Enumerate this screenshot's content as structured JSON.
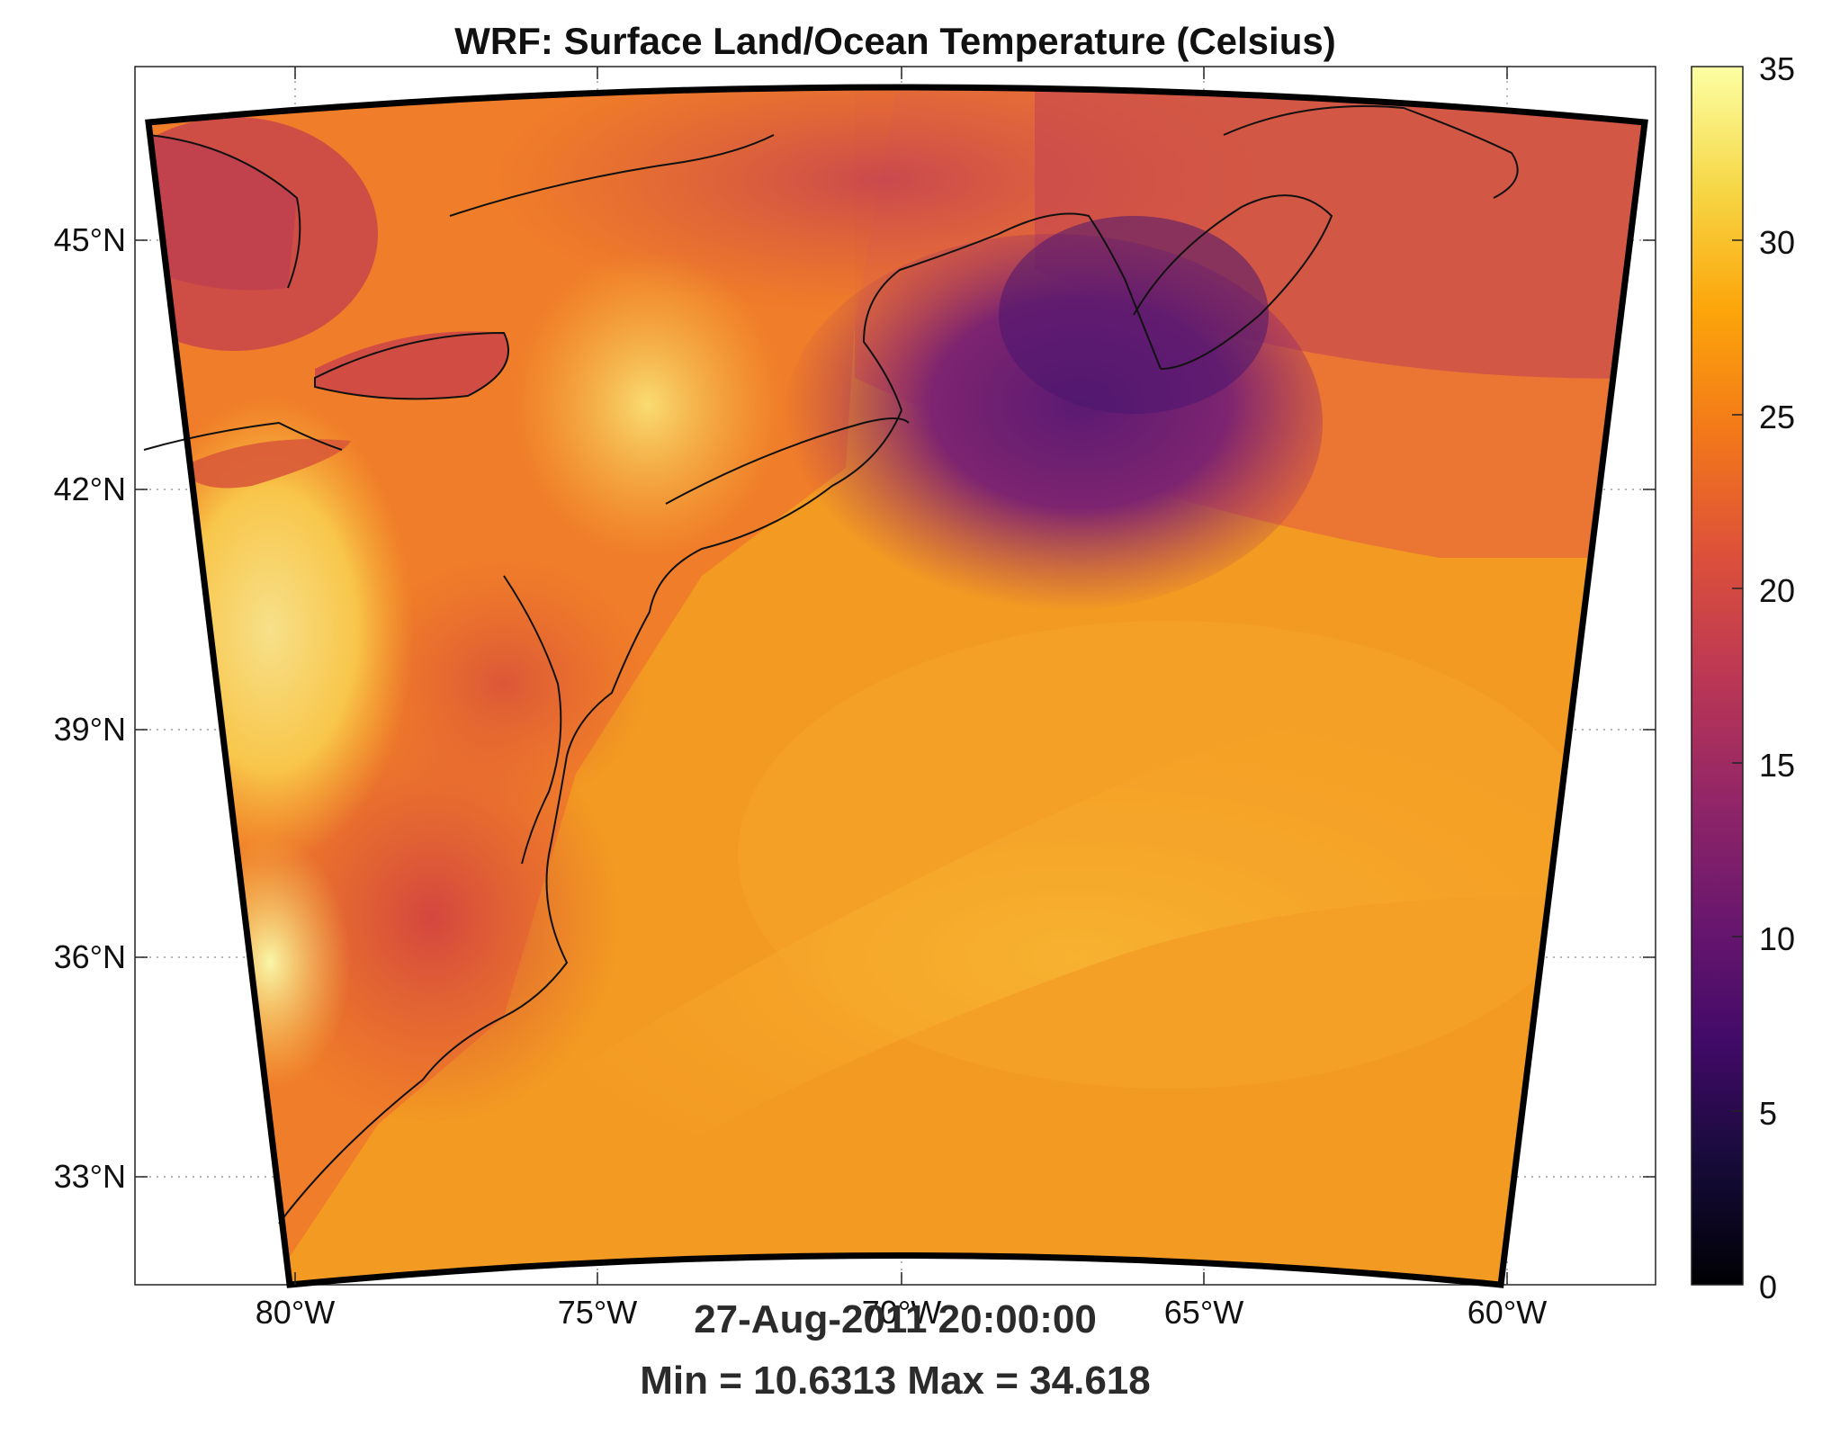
{
  "title": "WRF: Surface Land/Ocean Temperature (Celsius)",
  "footer": {
    "time": "27-Aug-2011 20:00:00",
    "stats": "Min = 10.6313  Max = 34.618"
  },
  "axes": {
    "lat_ticks": [
      "45°N",
      "42°N",
      "39°N",
      "36°N",
      "33°N"
    ],
    "lon_ticks": [
      "80°W",
      "75°W",
      "70°W",
      "65°W",
      "60°W"
    ]
  },
  "colorbar": {
    "colormap": "inferno",
    "min": 0,
    "max": 35,
    "ticks": [
      "35",
      "30",
      "25",
      "20",
      "15",
      "10",
      "5",
      "0"
    ]
  },
  "chart_data": {
    "type": "heatmap",
    "variable": "Surface Land/Ocean Temperature",
    "units": "Celsius",
    "min": 10.6313,
    "max": 34.618,
    "lat_range": [
      31.5,
      47
    ],
    "lon_range": [
      -82.5,
      -57.5
    ]
  }
}
